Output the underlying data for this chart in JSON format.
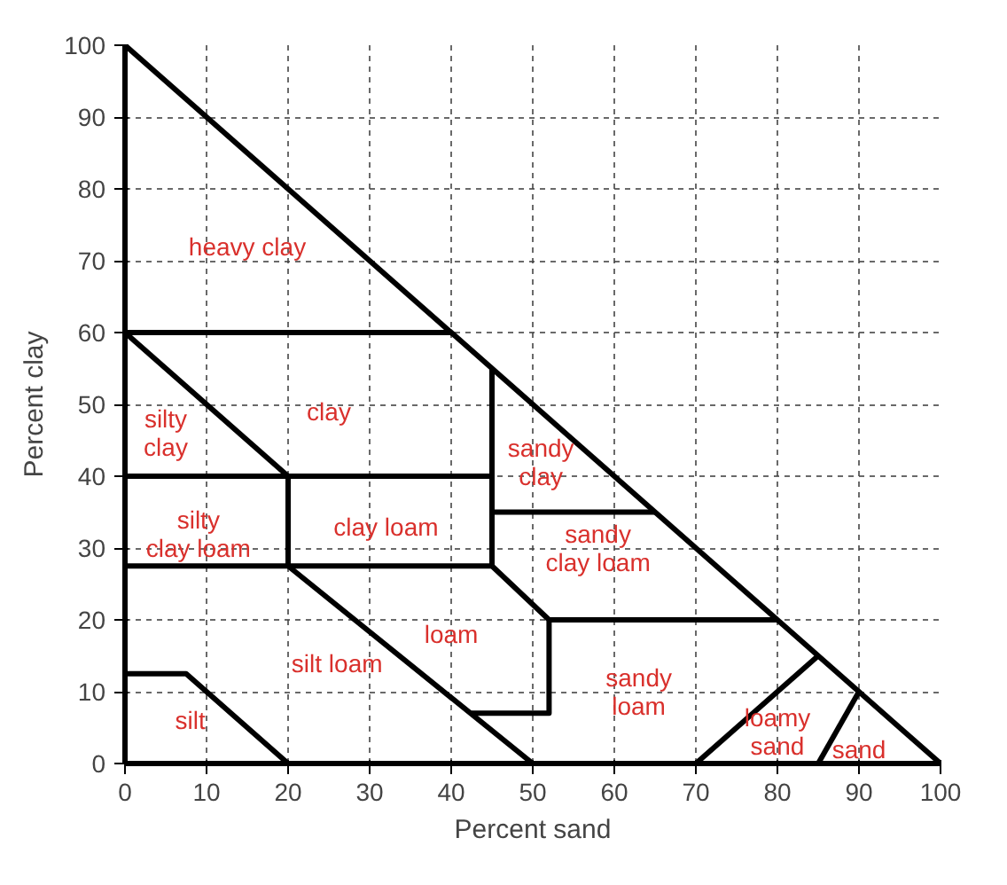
{
  "chart_data": {
    "type": "line",
    "xlabel": "Percent sand",
    "ylabel": "Percent clay",
    "xlim": [
      0,
      100
    ],
    "ylim": [
      0,
      100
    ],
    "xticks": [
      0,
      10,
      20,
      30,
      40,
      50,
      60,
      70,
      80,
      90,
      100
    ],
    "yticks": [
      0,
      10,
      20,
      30,
      40,
      50,
      60,
      70,
      80,
      90,
      100
    ],
    "grid": true,
    "marker": "none",
    "line_style": "solid",
    "series": [
      {
        "color": "#000000",
        "x": [
          0,
          100
        ],
        "values": [
          100,
          0
        ]
      },
      {
        "color": "#000000",
        "x": [
          0,
          40
        ],
        "values": [
          60,
          60
        ]
      },
      {
        "color": "#000000",
        "x": [
          0,
          20
        ],
        "values": [
          60,
          40
        ]
      },
      {
        "color": "#000000",
        "x": [
          0,
          45
        ],
        "values": [
          40,
          40
        ]
      },
      {
        "color": "#000000",
        "x": [
          20,
          20
        ],
        "values": [
          40,
          27.5
        ]
      },
      {
        "color": "#000000",
        "x": [
          0,
          45
        ],
        "values": [
          27.5,
          27.5
        ]
      },
      {
        "color": "#000000",
        "x": [
          45,
          45
        ],
        "values": [
          55,
          27.5
        ]
      },
      {
        "color": "#000000",
        "x": [
          45,
          65
        ],
        "values": [
          35,
          35
        ]
      },
      {
        "color": "#000000",
        "x": [
          20,
          50
        ],
        "values": [
          27.5,
          0
        ]
      },
      {
        "color": "#000000",
        "x": [
          45,
          52,
          52,
          42.5
        ],
        "values": [
          27.5,
          20,
          7,
          7
        ]
      },
      {
        "color": "#000000",
        "x": [
          52,
          80
        ],
        "values": [
          20,
          20
        ]
      },
      {
        "color": "#000000",
        "x": [
          0,
          7.5,
          20
        ],
        "values": [
          12.5,
          12.5,
          0
        ]
      },
      {
        "color": "#000000",
        "x": [
          70,
          85
        ],
        "values": [
          0,
          15
        ]
      },
      {
        "color": "#000000",
        "x": [
          85,
          90
        ],
        "values": [
          0,
          10
        ]
      }
    ],
    "annotations": [
      "heavy clay",
      "clay",
      "silty\nclay",
      "silty\nclay loam",
      "clay loam",
      "sandy\nclay",
      "sandy\nclay loam",
      "loam",
      "silt loam",
      "silt",
      "sandy\nloam",
      "loamy\nsand",
      "sand"
    ]
  }
}
